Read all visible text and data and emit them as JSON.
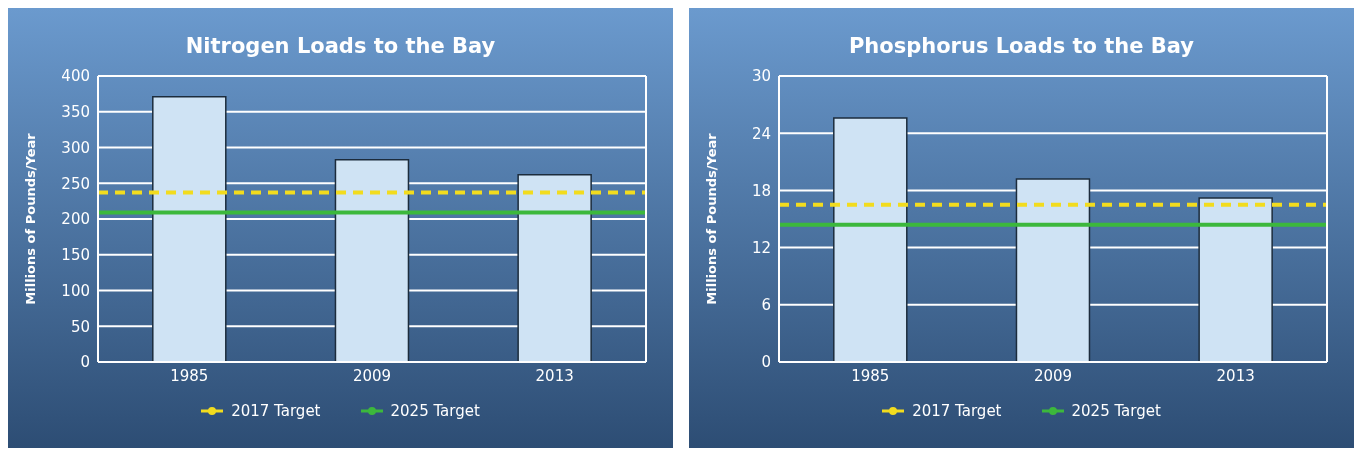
{
  "chart_data": [
    {
      "type": "bar",
      "title": "Nitrogen Loads to the Bay",
      "ylabel": "Millions of Pounds/Year",
      "categories": [
        "1985",
        "2009",
        "2013"
      ],
      "series": [
        {
          "color": "#cfe3f4",
          "values": [
            371,
            283,
            262
          ]
        }
      ],
      "ylim": [
        0,
        400
      ],
      "yticks": [
        0,
        50,
        100,
        150,
        200,
        250,
        300,
        350,
        400
      ],
      "grid": "y",
      "legend": "bottom",
      "ref_lines": [
        {
          "axis": "y",
          "value": 237,
          "label": "2017 Target",
          "color": "#f2dc1e",
          "line_style": "dashed"
        },
        {
          "axis": "y",
          "value": 209,
          "label": "2025 Target",
          "color": "#3cb83c",
          "line_style": "solid"
        }
      ]
    },
    {
      "type": "bar",
      "title": "Phosphorus Loads to the Bay",
      "ylabel": "Millions of Pounds/Year",
      "categories": [
        "1985",
        "2009",
        "2013"
      ],
      "series": [
        {
          "color": "#cfe3f4",
          "values": [
            25.6,
            19.2,
            17.2
          ]
        }
      ],
      "ylim": [
        0,
        30
      ],
      "yticks": [
        0,
        6,
        12,
        18,
        24,
        30
      ],
      "grid": "y",
      "legend": "bottom",
      "ref_lines": [
        {
          "axis": "y",
          "value": 16.5,
          "label": "2017 Target",
          "color": "#f2dc1e",
          "line_style": "dashed"
        },
        {
          "axis": "y",
          "value": 14.4,
          "label": "2025 Target",
          "color": "#3cb83c",
          "line_style": "solid"
        }
      ]
    }
  ]
}
